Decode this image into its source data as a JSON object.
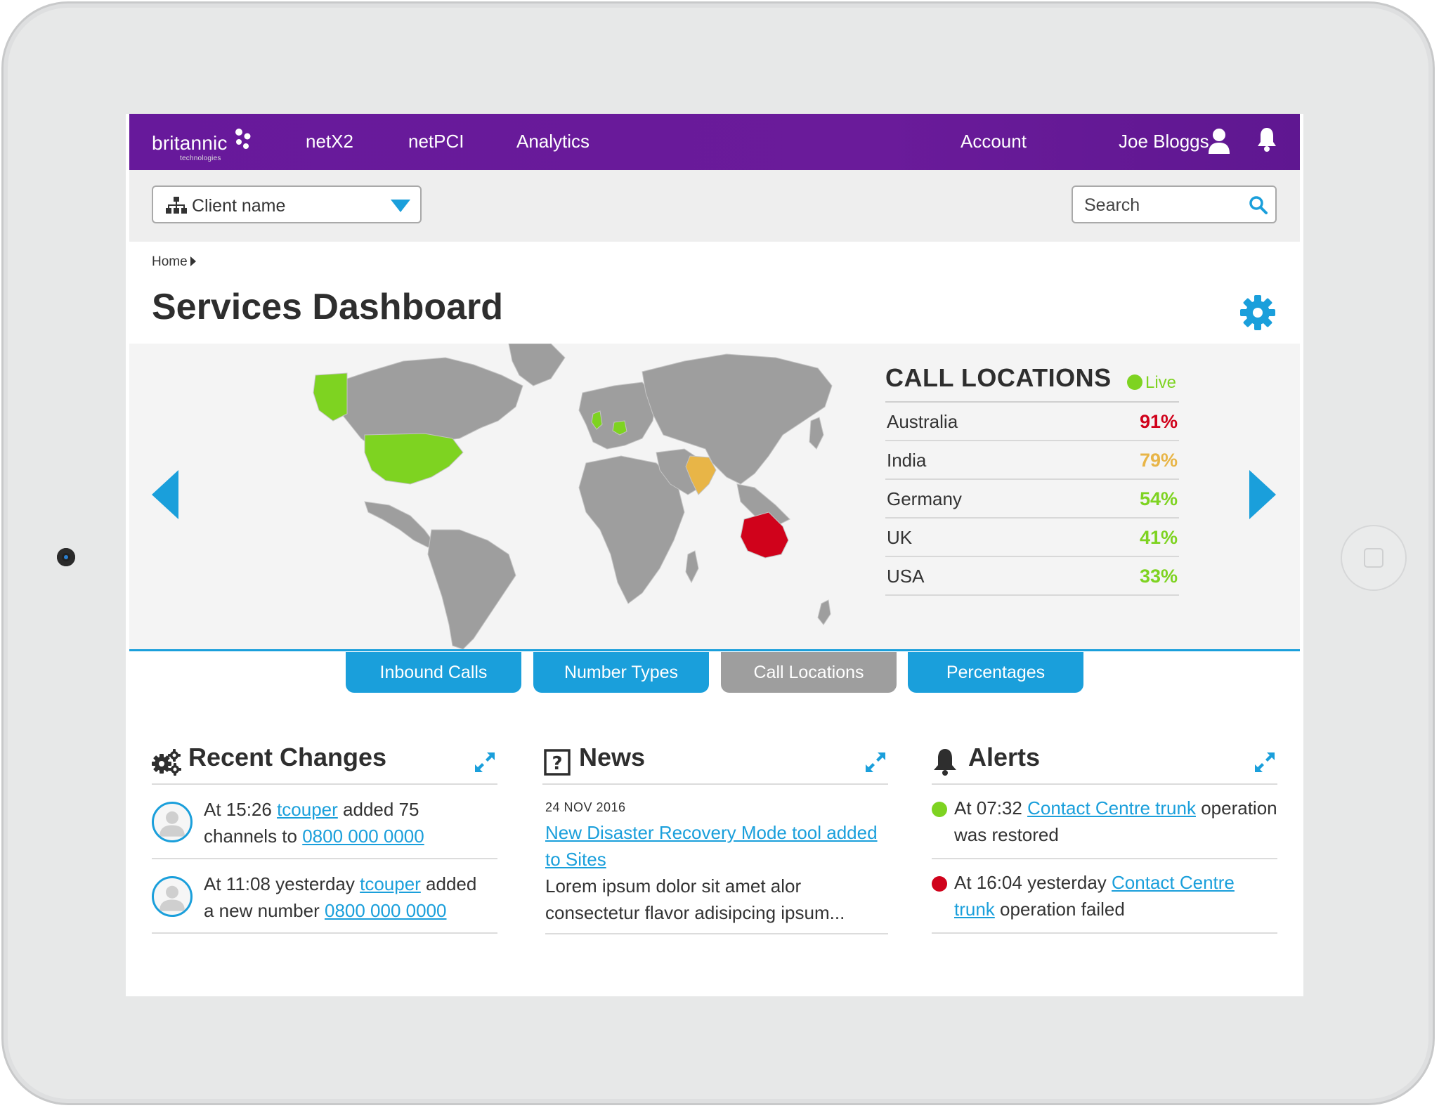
{
  "brand": {
    "name": "britannic",
    "tagline": "technologies",
    "accent": "#6a1b9a",
    "primary_blue": "#1a9fdb"
  },
  "topnav": {
    "items": [
      {
        "label": "netX2"
      },
      {
        "label": "netPCI"
      },
      {
        "label": "Analytics"
      }
    ],
    "account_label": "Account",
    "user_name": "Joe Bloggs",
    "user_icon": "user-icon",
    "notifications_icon": "bell-icon"
  },
  "toolbar": {
    "client_select": {
      "value": "Client name",
      "icon": "org-chart-icon"
    },
    "search": {
      "placeholder": "Search",
      "value": ""
    }
  },
  "breadcrumb": {
    "home": "Home"
  },
  "page": {
    "title": "Services Dashboard",
    "settings_icon": "gear-icon"
  },
  "call_locations": {
    "title": "CALL LOCATIONS",
    "live_label": "Live",
    "live_color": "#7ed321",
    "rows": [
      {
        "name": "Australia",
        "pct": "91%",
        "color": "#d0021b"
      },
      {
        "name": "India",
        "pct": "79%",
        "color": "#e8b547"
      },
      {
        "name": "Germany",
        "pct": "54%",
        "color": "#7ed321"
      },
      {
        "name": "UK",
        "pct": "41%",
        "color": "#7ed321"
      },
      {
        "name": "USA",
        "pct": "33%",
        "color": "#7ed321"
      }
    ]
  },
  "tabs": [
    {
      "label": "Inbound Calls",
      "active": false
    },
    {
      "label": "Number Types",
      "active": false
    },
    {
      "label": "Call Locations",
      "active": true
    },
    {
      "label": "Percentages",
      "active": false
    }
  ],
  "recent_changes": {
    "title": "Recent Changes",
    "items": [
      {
        "prefix": "At 15:26 ",
        "user": "tcouper",
        "middle": " added 75 channels to ",
        "number": "0800 000 0000"
      },
      {
        "prefix": "At 11:08 yesterday ",
        "user": "tcouper",
        "middle": " added a new number ",
        "number": "0800 000 0000"
      }
    ]
  },
  "news": {
    "title": "News",
    "date": "24 NOV 2016",
    "headline": "New Disaster Recovery Mode tool added to Sites",
    "body": "Lorem ipsum dolor sit amet alor consectetur flavor adisipcing ipsum..."
  },
  "alerts": {
    "title": "Alerts",
    "items": [
      {
        "prefix": "At 07:32 ",
        "link": "Contact Centre trunk",
        "suffix": " operation was restored",
        "color": "#7ed321"
      },
      {
        "prefix": "At 16:04 yesterday ",
        "link": "Contact Centre trunk",
        "suffix": " operation failed",
        "color": "#d0021b"
      }
    ]
  }
}
